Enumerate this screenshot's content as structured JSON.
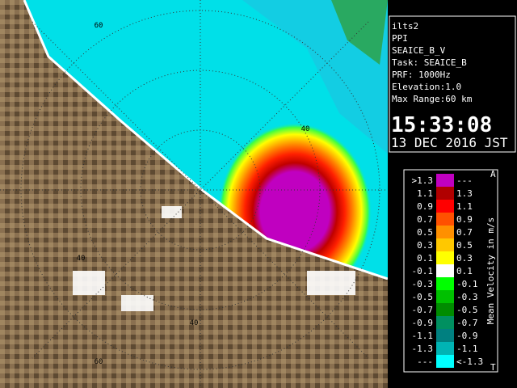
{
  "info": {
    "lines": [
      "ilts2",
      "PPI",
      "SEAICE_B_V",
      "Task: SEAICE_B",
      "PRF: 1000Hz",
      "Elevation:1.0",
      "Max Range:60 km"
    ],
    "time": "15:33:08",
    "date": "13 DEC 2016 JST"
  },
  "legend": {
    "title": "Mean Velocity in m/s",
    "top_marker": "A",
    "bottom_marker": "T",
    "rows": [
      {
        "label": ">1.3",
        "range": "---",
        "color": "#c000c0"
      },
      {
        "label": "1.1",
        "range": "1.3",
        "color": "#b00000"
      },
      {
        "label": "0.9",
        "range": "1.1",
        "color": "#ff0000"
      },
      {
        "label": "0.7",
        "range": "0.9",
        "color": "#ff5000"
      },
      {
        "label": "0.5",
        "range": "0.7",
        "color": "#ff9000"
      },
      {
        "label": "0.3",
        "range": "0.5",
        "color": "#ffc800"
      },
      {
        "label": "0.1",
        "range": "0.3",
        "color": "#ffff00"
      },
      {
        "label": "-0.1",
        "range": "0.1",
        "color": "#ffffff"
      },
      {
        "label": "-0.3",
        "range": "-0.1",
        "color": "#00ff00"
      },
      {
        "label": "-0.5",
        "range": "-0.3",
        "color": "#00c000"
      },
      {
        "label": "-0.7",
        "range": "-0.5",
        "color": "#008c00"
      },
      {
        "label": "-0.9",
        "range": "-0.7",
        "color": "#009060"
      },
      {
        "label": "-1.1",
        "range": "-0.9",
        "color": "#008080"
      },
      {
        "label": "-1.3",
        "range": "-1.1",
        "color": "#00b4b4"
      },
      {
        "label": "---",
        "range": "<-1.3",
        "color": "#00ffff"
      }
    ]
  },
  "range_labels": [
    "60",
    "40",
    "40",
    "40",
    "60"
  ]
}
